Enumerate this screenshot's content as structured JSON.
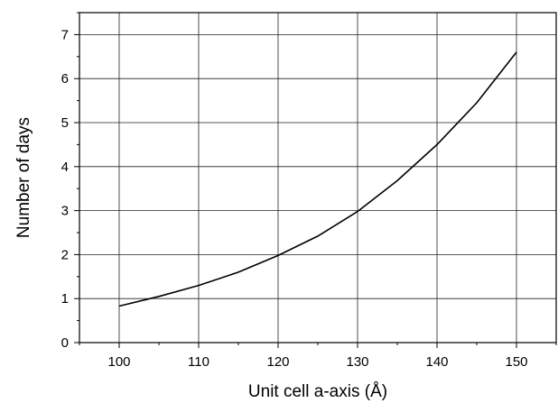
{
  "chart_data": {
    "type": "line",
    "title": "",
    "xlabel": "Unit cell a-axis (Å)",
    "ylabel": "Number of days",
    "xlim": [
      95,
      155
    ],
    "ylim": [
      0,
      7.5
    ],
    "x_ticks": [
      100,
      110,
      120,
      130,
      140,
      150
    ],
    "y_ticks": [
      0,
      1,
      2,
      3,
      4,
      5,
      6,
      7
    ],
    "x_tick_labels": [
      "100",
      "110",
      "120",
      "130",
      "140",
      "150"
    ],
    "y_tick_labels": [
      "0",
      "1",
      "2",
      "3",
      "4",
      "5",
      "6",
      "7"
    ],
    "grid": true,
    "legend": "none",
    "line_color": "#000000",
    "series": [
      {
        "x": [
          100,
          105,
          110,
          115,
          120,
          125,
          130,
          135,
          140,
          145,
          150
        ],
        "y": [
          0.83,
          1.05,
          1.3,
          1.6,
          1.98,
          2.42,
          2.98,
          3.68,
          4.5,
          5.45,
          6.6
        ]
      }
    ]
  }
}
